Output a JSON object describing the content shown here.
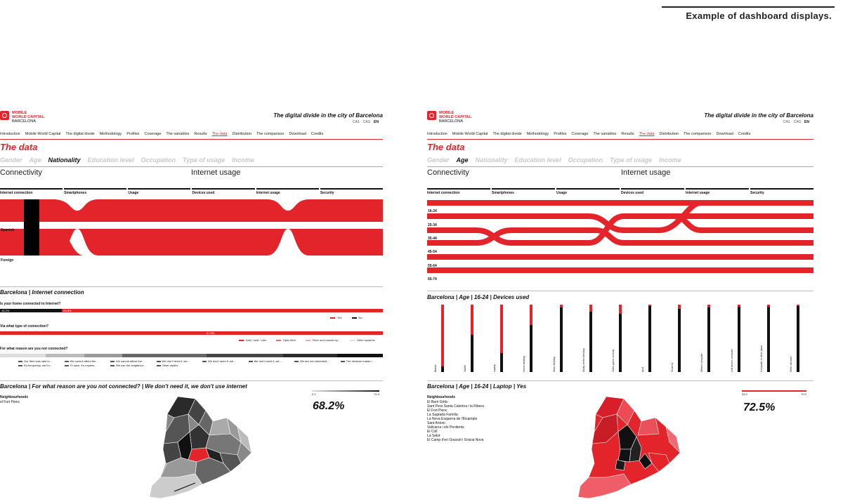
{
  "caption": "Example of dashboard displays.",
  "colors": {
    "accent": "#e3242b",
    "dark": "#111111",
    "muted": "#c8c8c8"
  },
  "logo": {
    "line1": "MOBILE",
    "line2": "WORLD CAPITAL.",
    "line3": "BARCELONA"
  },
  "site_title": "The digital divide in the city of Barcelona",
  "langs": [
    "CA1",
    "CAS",
    "EN"
  ],
  "nav": [
    "Introduction",
    "Mobile World Capital",
    "The digital divide",
    "Methodology",
    "Profiles",
    "Coverage",
    "The variables",
    "Results",
    "The data",
    "Distribution",
    "The comparison",
    "Download",
    "Credits"
  ],
  "heading": "The data",
  "filters": [
    "Gender",
    "Age",
    "Nationality",
    "Education level",
    "Occupation",
    "Type of usage",
    "Income"
  ],
  "section_connectivity": "Connectivity",
  "section_internet_usage": "Internet usage",
  "columns": [
    "Internet connection",
    "Smartphones",
    "Usage",
    "Devices used",
    "Internet usage",
    "Security"
  ],
  "left": {
    "active_filter": "Nationality",
    "rows": [
      "Spanish",
      "Foreign"
    ],
    "connection_title": "Barcelona | Internet connection",
    "q1": {
      "question": "Is your home connected to Internet?",
      "yes_label": "16.2%",
      "no_label": "83.8%",
      "legend": [
        "Yes",
        "No"
      ]
    },
    "q2": {
      "question": "Via what type of connection?",
      "value_label": "67.5%",
      "legend": [
        "Adsl / sdsl / vdsl",
        "Optic fibre",
        "Fibre and coaxial by...",
        "Other systems"
      ]
    },
    "q3": {
      "question": "For what reason are you not connected?",
      "legend": [
        "Our fibre was said to...",
        "We cannot afford the...",
        "We cannot afford the...",
        "We don't need it, we...",
        "We don't need it, we...",
        "We don't need it, we...",
        "We are not interested...",
        "The decision maker i...",
        "It's temporary, we'll s...",
        "To save, it's expens...",
        "We use the neighbour...",
        "Other replies"
      ]
    },
    "map_title": "Barcelona | For what reason are you not connected? | We don't need it, we don't use internet",
    "neighbourhoods_title": "Neighbourhoods",
    "neighbourhoods": [
      "el Fort Pienc"
    ],
    "scale": {
      "min": "0.1",
      "max": "71.0"
    },
    "big_value": "68.2%"
  },
  "right": {
    "active_filter": "Age",
    "rows": [
      "16-24",
      "25-34",
      "35-44",
      "45-54",
      "55-64",
      "65-74"
    ],
    "devices_title": "Barcelona | Age | 16-24 | Devices used",
    "devices": [
      {
        "label": "Mobile",
        "share": 0.92
      },
      {
        "label": "Tablet",
        "share": 0.45
      },
      {
        "label": "Laptop",
        "share": 0.72
      },
      {
        "label": "Home desktop",
        "share": 0.3
      },
      {
        "label": "Work desktop",
        "share": 0.04
      },
      {
        "label": "Study centre desktop",
        "share": 0.1
      },
      {
        "label": "Video game console",
        "share": 0.14
      },
      {
        "label": "Ipod",
        "share": 0.02
      },
      {
        "label": "Smart tv",
        "share": 0.06
      },
      {
        "label": "Others computer",
        "share": 0.04
      },
      {
        "label": "Cell phone computer",
        "share": 0.03
      },
      {
        "label": "Computer in other place",
        "share": 0.03
      },
      {
        "label": "Other devices",
        "share": 0.02
      }
    ],
    "map_title": "Barcelona | Age | 16-24 | Laptop | Yes",
    "neighbourhoods_title": "Neighbourhoods",
    "neighbourhoods": [
      "El Barri Gòtic",
      "Sant Pere Santa Caterina i la Ribera",
      "El Fort Pienc",
      "La Sagrada Família",
      "La Nova Esquerra de l'Eixample",
      "Sant Antoni",
      "Vallcarca i els Penitents",
      "El Coll",
      "La Salut",
      "El Camp d'en Grassot i Gràcia Nova"
    ],
    "scale": {
      "min": "53.9",
      "max": "79.0"
    },
    "big_value": "72.5%"
  }
}
